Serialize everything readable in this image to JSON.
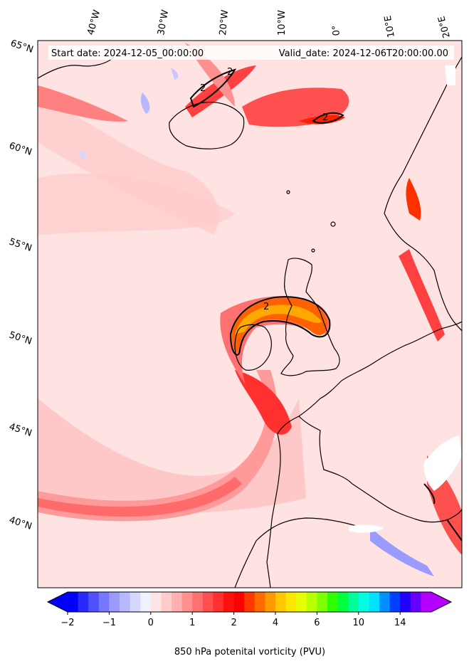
{
  "map": {
    "start_date": "Start date: 2024-12-05_00:00:00",
    "valid_date": "Valid_date: 2024-12-06T20:00:00.00",
    "lon_labels": [
      "40°W",
      "30°W",
      "20°W",
      "10°W",
      "0°",
      "10°E",
      "20°E"
    ],
    "lat_labels": [
      "65°N",
      "60°N",
      "55°N",
      "50°N",
      "45°N",
      "40°N"
    ],
    "contour_labels": [
      "2",
      "2",
      "2",
      "2"
    ],
    "background_color": "#ffe2e2"
  },
  "colorbar": {
    "label": "850 hPa potenital vorticity (PVU)",
    "tick_labels": [
      "−2",
      "−1",
      "0",
      "1",
      "2",
      "4",
      "6",
      "10",
      "14"
    ],
    "colors": [
      "#0000ff",
      "#2828ff",
      "#5050ff",
      "#7878ff",
      "#9a9aff",
      "#b8b8ff",
      "#d6d6ff",
      "#f0f0ff",
      "#ffe6e6",
      "#ffcccc",
      "#ffb0b0",
      "#ff9090",
      "#ff7070",
      "#ff5050",
      "#ff3030",
      "#ff1010",
      "#ff0000",
      "#ff3800",
      "#ff6a00",
      "#ff9a00",
      "#ffc800",
      "#ffe600",
      "#e6ff00",
      "#b8ff00",
      "#80ff00",
      "#30ff00",
      "#00ff40",
      "#00ff9a",
      "#00ffe0",
      "#00e0ff",
      "#0090ff",
      "#0040ff",
      "#2000ff",
      "#6800ff",
      "#b400ff"
    ],
    "under_color": "#0000ff",
    "over_color": "#b400ff"
  }
}
